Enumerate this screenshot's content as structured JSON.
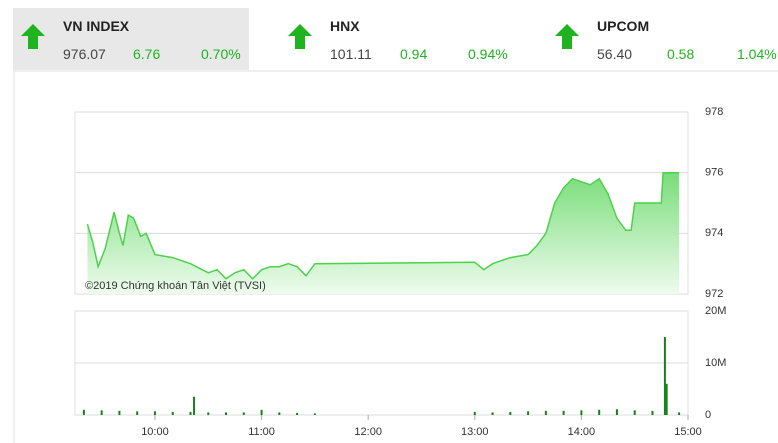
{
  "indices": [
    {
      "name": "VN INDEX",
      "value": "976.07",
      "change": "6.76",
      "percent": "0.70%"
    },
    {
      "name": "HNX",
      "value": "101.11",
      "change": "0.94",
      "percent": "0.94%"
    },
    {
      "name": "UPCOM",
      "value": "56.40",
      "change": "0.58",
      "percent": "1.04%"
    }
  ],
  "chart_data": [
    {
      "type": "area",
      "watermark": "©2019 Chứng khoán Tân Việt (TVSI)",
      "color": "#4cd24c",
      "x": [
        "09:22",
        "09:25",
        "09:28",
        "09:32",
        "09:37",
        "09:40",
        "09:42",
        "09:45",
        "09:48",
        "09:52",
        "09:55",
        "10:00",
        "10:10",
        "10:20",
        "10:30",
        "10:35",
        "10:40",
        "10:45",
        "10:50",
        "10:55",
        "11:00",
        "11:05",
        "11:10",
        "11:15",
        "11:20",
        "11:25",
        "11:30",
        "13:00",
        "13:05",
        "13:10",
        "13:15",
        "13:20",
        "13:30",
        "13:35",
        "13:40",
        "13:45",
        "13:50",
        "13:55",
        "14:00",
        "14:05",
        "14:10",
        "14:15",
        "14:20",
        "14:25",
        "14:28",
        "14:30",
        "14:45",
        "14:46",
        "14:55"
      ],
      "values": [
        974.3,
        973.7,
        972.9,
        973.5,
        974.7,
        974.0,
        973.6,
        974.6,
        974.5,
        973.9,
        974.0,
        973.3,
        973.2,
        973.0,
        972.7,
        972.8,
        972.5,
        972.7,
        972.8,
        972.5,
        972.8,
        972.9,
        972.9,
        973.0,
        972.9,
        972.6,
        973.0,
        973.05,
        972.8,
        973.0,
        973.1,
        973.2,
        973.3,
        973.6,
        974.0,
        975.0,
        975.5,
        975.8,
        975.7,
        975.6,
        975.8,
        975.3,
        974.5,
        974.1,
        974.1,
        975.0,
        975.0,
        976.0,
        976.0
      ],
      "xlim": [
        "09:15",
        "15:00"
      ],
      "ylim": [
        972,
        978
      ],
      "yticks": [
        972,
        974,
        976,
        978
      ],
      "grid": true
    },
    {
      "type": "bar",
      "color": "#17801a",
      "x": [
        "09:20",
        "09:30",
        "09:40",
        "09:50",
        "10:00",
        "10:10",
        "10:20",
        "10:22",
        "10:30",
        "10:40",
        "10:50",
        "11:00",
        "11:10",
        "11:20",
        "11:30",
        "13:00",
        "13:10",
        "13:20",
        "13:30",
        "13:40",
        "13:50",
        "14:00",
        "14:10",
        "14:20",
        "14:30",
        "14:40",
        "14:47",
        "14:48",
        "14:55"
      ],
      "values": [
        1000000,
        900000,
        800000,
        700000,
        700000,
        600000,
        600000,
        3500000,
        500000,
        500000,
        500000,
        1000000,
        500000,
        400000,
        300000,
        600000,
        500000,
        600000,
        700000,
        800000,
        800000,
        900000,
        1000000,
        1100000,
        900000,
        800000,
        15000000,
        6000000,
        500000
      ],
      "xlim": [
        "09:15",
        "15:00"
      ],
      "xticks": [
        "10:00",
        "11:00",
        "12:00",
        "13:00",
        "14:00",
        "15:00"
      ],
      "ylim": [
        0,
        20000000
      ],
      "yticks": [
        0,
        {
          "value": 10000000,
          "label": "10M"
        },
        {
          "value": 20000000,
          "label": "20M"
        }
      ],
      "grid": true
    }
  ]
}
